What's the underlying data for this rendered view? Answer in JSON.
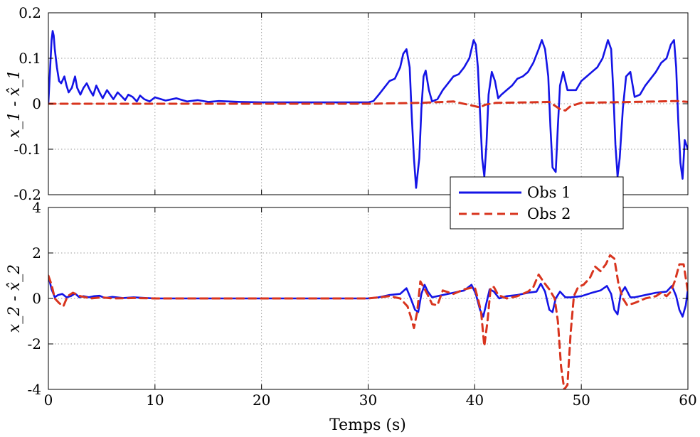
{
  "colors": {
    "obs1": "#1414e6",
    "obs2": "#d8341e"
  },
  "chart_data": [
    {
      "type": "line",
      "ylabel": "x_1 - x̂_1",
      "xlabel": "",
      "xlim": [
        0,
        60
      ],
      "ylim": [
        -0.2,
        0.2
      ],
      "xticks": [
        0,
        10,
        20,
        30,
        40,
        50,
        60
      ],
      "xticklabels": [
        "",
        "",
        "",
        "",
        "",
        "",
        ""
      ],
      "yticks": [
        -0.2,
        -0.1,
        0,
        0.1,
        0.2
      ],
      "yticklabels": [
        "-0.2",
        "-0.1",
        "0",
        "0.1",
        "0.2"
      ],
      "grid": true,
      "series": [
        {
          "name": "Obs 1",
          "color": "#1414e6",
          "style": "solid",
          "x": [
            0,
            0.3,
            0.4,
            0.5,
            0.6,
            0.8,
            1.0,
            1.2,
            1.5,
            1.7,
            1.9,
            2.2,
            2.5,
            2.7,
            3.0,
            3.3,
            3.6,
            3.9,
            4.2,
            4.5,
            4.8,
            5.1,
            5.5,
            5.8,
            6.1,
            6.5,
            6.8,
            7.2,
            7.5,
            7.9,
            8.3,
            8.6,
            9.0,
            9.5,
            10,
            11,
            12,
            13,
            14,
            15,
            16,
            18,
            20,
            22,
            24,
            26,
            28,
            30,
            30.5,
            31,
            31.5,
            32,
            32.5,
            33,
            33.3,
            33.6,
            33.9,
            34.1,
            34.3,
            34.5,
            34.8,
            35.0,
            35.2,
            35.4,
            35.7,
            36.0,
            36.5,
            37,
            37.5,
            38,
            38.5,
            39,
            39.5,
            39.9,
            40.1,
            40.3,
            40.5,
            40.7,
            40.9,
            41.1,
            41.3,
            41.6,
            41.9,
            42.2,
            42.5,
            43,
            43.5,
            44,
            44.5,
            45,
            45.5,
            46,
            46.3,
            46.6,
            46.9,
            47.1,
            47.3,
            47.6,
            47.8,
            48.0,
            48.3,
            48.7,
            49.5,
            50,
            50.5,
            51,
            51.5,
            52,
            52.5,
            52.8,
            53.0,
            53.2,
            53.4,
            53.6,
            53.9,
            54.2,
            54.6,
            55,
            55.5,
            56,
            56.5,
            57,
            57.5,
            58,
            58.4,
            58.7,
            58.9,
            59.1,
            59.3,
            59.5,
            59.7,
            60
          ],
          "y": [
            0.002,
            0.14,
            0.16,
            0.15,
            0.12,
            0.08,
            0.05,
            0.045,
            0.06,
            0.04,
            0.025,
            0.035,
            0.06,
            0.035,
            0.02,
            0.035,
            0.045,
            0.03,
            0.018,
            0.04,
            0.025,
            0.012,
            0.03,
            0.02,
            0.01,
            0.025,
            0.018,
            0.008,
            0.02,
            0.015,
            0.005,
            0.018,
            0.01,
            0.005,
            0.014,
            0.007,
            0.012,
            0.005,
            0.008,
            0.004,
            0.006,
            0.004,
            0.003,
            0.003,
            0.003,
            0.003,
            0.003,
            0.003,
            0.006,
            0.02,
            0.035,
            0.05,
            0.055,
            0.08,
            0.11,
            0.12,
            0.08,
            -0.03,
            -0.12,
            -0.185,
            -0.12,
            -0.01,
            0.06,
            0.073,
            0.03,
            0.005,
            0.01,
            0.03,
            0.045,
            0.06,
            0.065,
            0.08,
            0.1,
            0.14,
            0.13,
            0.08,
            -0.02,
            -0.12,
            -0.16,
            -0.09,
            0.02,
            0.07,
            0.05,
            0.012,
            0.02,
            0.03,
            0.04,
            0.055,
            0.06,
            0.07,
            0.09,
            0.12,
            0.14,
            0.12,
            0.06,
            -0.05,
            -0.14,
            -0.15,
            -0.05,
            0.04,
            0.07,
            0.03,
            0.03,
            0.05,
            0.06,
            0.07,
            0.08,
            0.1,
            0.14,
            0.12,
            0.03,
            -0.09,
            -0.16,
            -0.12,
            -0.01,
            0.06,
            0.07,
            0.015,
            0.02,
            0.04,
            0.055,
            0.07,
            0.09,
            0.1,
            0.13,
            0.14,
            0.08,
            -0.04,
            -0.13,
            -0.165,
            -0.08,
            -0.1
          ]
        },
        {
          "name": "Obs 2",
          "color": "#d8341e",
          "style": "dashed",
          "x": [
            0,
            10,
            20,
            30,
            35,
            38,
            40.5,
            41,
            42,
            45,
            47,
            48,
            48.5,
            49,
            50,
            55,
            59,
            60
          ],
          "y": [
            0.0,
            0.0,
            0.0,
            0.0,
            0.002,
            0.005,
            -0.008,
            -0.002,
            0.002,
            0.003,
            0.004,
            -0.012,
            -0.015,
            -0.005,
            0.002,
            0.004,
            0.006,
            0.004
          ]
        }
      ]
    },
    {
      "type": "line",
      "ylabel": "x_2 - x̂_2",
      "xlabel": "Temps (s)",
      "xlim": [
        0,
        60
      ],
      "ylim": [
        -4,
        4
      ],
      "xticks": [
        0,
        10,
        20,
        30,
        40,
        50,
        60
      ],
      "xticklabels": [
        "0",
        "10",
        "20",
        "30",
        "40",
        "50",
        "60"
      ],
      "yticks": [
        -4,
        -2,
        0,
        2,
        4
      ],
      "yticklabels": [
        "-4",
        "-2",
        "0",
        "2",
        "4"
      ],
      "grid": true,
      "series": [
        {
          "name": "Obs 1",
          "color": "#1414e6",
          "style": "solid",
          "x": [
            0,
            0.3,
            0.6,
            0.9,
            1.3,
            1.7,
            2.1,
            2.5,
            2.9,
            3.3,
            3.8,
            4.3,
            4.8,
            5.3,
            6,
            7,
            8,
            10,
            15,
            20,
            25,
            30,
            31,
            32,
            33,
            33.6,
            34.0,
            34.4,
            34.7,
            35.0,
            35.3,
            35.6,
            36,
            37,
            38,
            39,
            39.7,
            40.1,
            40.5,
            40.8,
            41.1,
            41.4,
            41.8,
            42.3,
            43,
            44,
            45,
            45.8,
            46.2,
            46.6,
            47.0,
            47.3,
            47.6,
            48.0,
            48.5,
            49,
            50,
            51,
            51.8,
            52.4,
            52.8,
            53.1,
            53.4,
            53.7,
            54.1,
            54.6,
            55,
            56,
            57,
            58,
            58.5,
            58.9,
            59.2,
            59.5,
            59.8,
            60
          ],
          "y": [
            1.0,
            0.4,
            0.05,
            0.15,
            0.2,
            0.05,
            0.1,
            0.22,
            0.05,
            0.1,
            0.05,
            0.1,
            0.12,
            0.02,
            0.07,
            0.02,
            0.05,
            0.0,
            0.0,
            0.0,
            0.0,
            0.0,
            0.05,
            0.15,
            0.2,
            0.45,
            0.0,
            -0.5,
            -0.6,
            0.2,
            0.6,
            0.3,
            0.05,
            0.15,
            0.25,
            0.35,
            0.6,
            0.2,
            -0.5,
            -0.8,
            -0.2,
            0.4,
            0.3,
            0.0,
            0.1,
            0.15,
            0.25,
            0.3,
            0.65,
            0.3,
            -0.5,
            -0.6,
            0.0,
            0.3,
            0.05,
            0.05,
            0.1,
            0.25,
            0.35,
            0.55,
            0.2,
            -0.5,
            -0.7,
            0.2,
            0.5,
            0.05,
            0.05,
            0.15,
            0.25,
            0.3,
            0.55,
            0.1,
            -0.5,
            -0.8,
            -0.3,
            0.4
          ]
        },
        {
          "name": "Obs 2",
          "color": "#d8341e",
          "style": "dashed",
          "x": [
            0,
            0.3,
            0.6,
            1.0,
            1.4,
            1.8,
            2.3,
            3,
            4,
            5,
            6,
            8,
            10,
            15,
            20,
            25,
            30,
            31,
            32,
            33,
            33.7,
            34.0,
            34.3,
            34.6,
            34.9,
            35.2,
            35.6,
            36,
            36.5,
            37,
            38,
            39,
            40,
            40.3,
            40.6,
            40.9,
            41.2,
            41.5,
            41.8,
            42.2,
            43,
            44,
            45,
            45.5,
            46,
            46.5,
            47,
            47.5,
            47.8,
            48.1,
            48.4,
            48.7,
            49.0,
            49.3,
            49.7,
            50.2,
            50.8,
            51.3,
            51.8,
            52.3,
            52.7,
            53.1,
            53.5,
            53.9,
            54.3,
            55,
            56,
            57,
            57.5,
            58,
            58.4,
            58.8,
            59.2,
            59.6,
            60
          ],
          "y": [
            1.0,
            0.6,
            0.0,
            -0.2,
            -0.35,
            0.1,
            0.25,
            0.1,
            0.0,
            0.05,
            0.0,
            0.02,
            0.0,
            0.0,
            0.0,
            0.0,
            0.0,
            0.05,
            0.1,
            0.0,
            -0.35,
            -0.8,
            -1.3,
            -0.6,
            0.75,
            0.5,
            0.15,
            -0.25,
            -0.3,
            0.35,
            0.2,
            0.4,
            0.5,
            0.0,
            -0.6,
            -2.1,
            -1.0,
            0.5,
            0.5,
            0.15,
            0.0,
            0.1,
            0.3,
            0.5,
            1.05,
            0.7,
            0.4,
            0.0,
            -1.0,
            -3.0,
            -4.0,
            -3.8,
            -1.5,
            0.1,
            0.5,
            0.6,
            0.9,
            1.4,
            1.2,
            1.5,
            1.9,
            1.75,
            0.6,
            0.0,
            -0.3,
            -0.2,
            0.0,
            0.1,
            0.25,
            0.1,
            0.3,
            0.8,
            1.5,
            1.5,
            0.3
          ]
        }
      ]
    }
  ],
  "legend": {
    "placement": "center-right (straddling both plots)",
    "entries": [
      {
        "label": "Obs 1",
        "color": "#1414e6",
        "style": "solid"
      },
      {
        "label": "Obs 2",
        "color": "#d8341e",
        "style": "dashed"
      }
    ]
  }
}
